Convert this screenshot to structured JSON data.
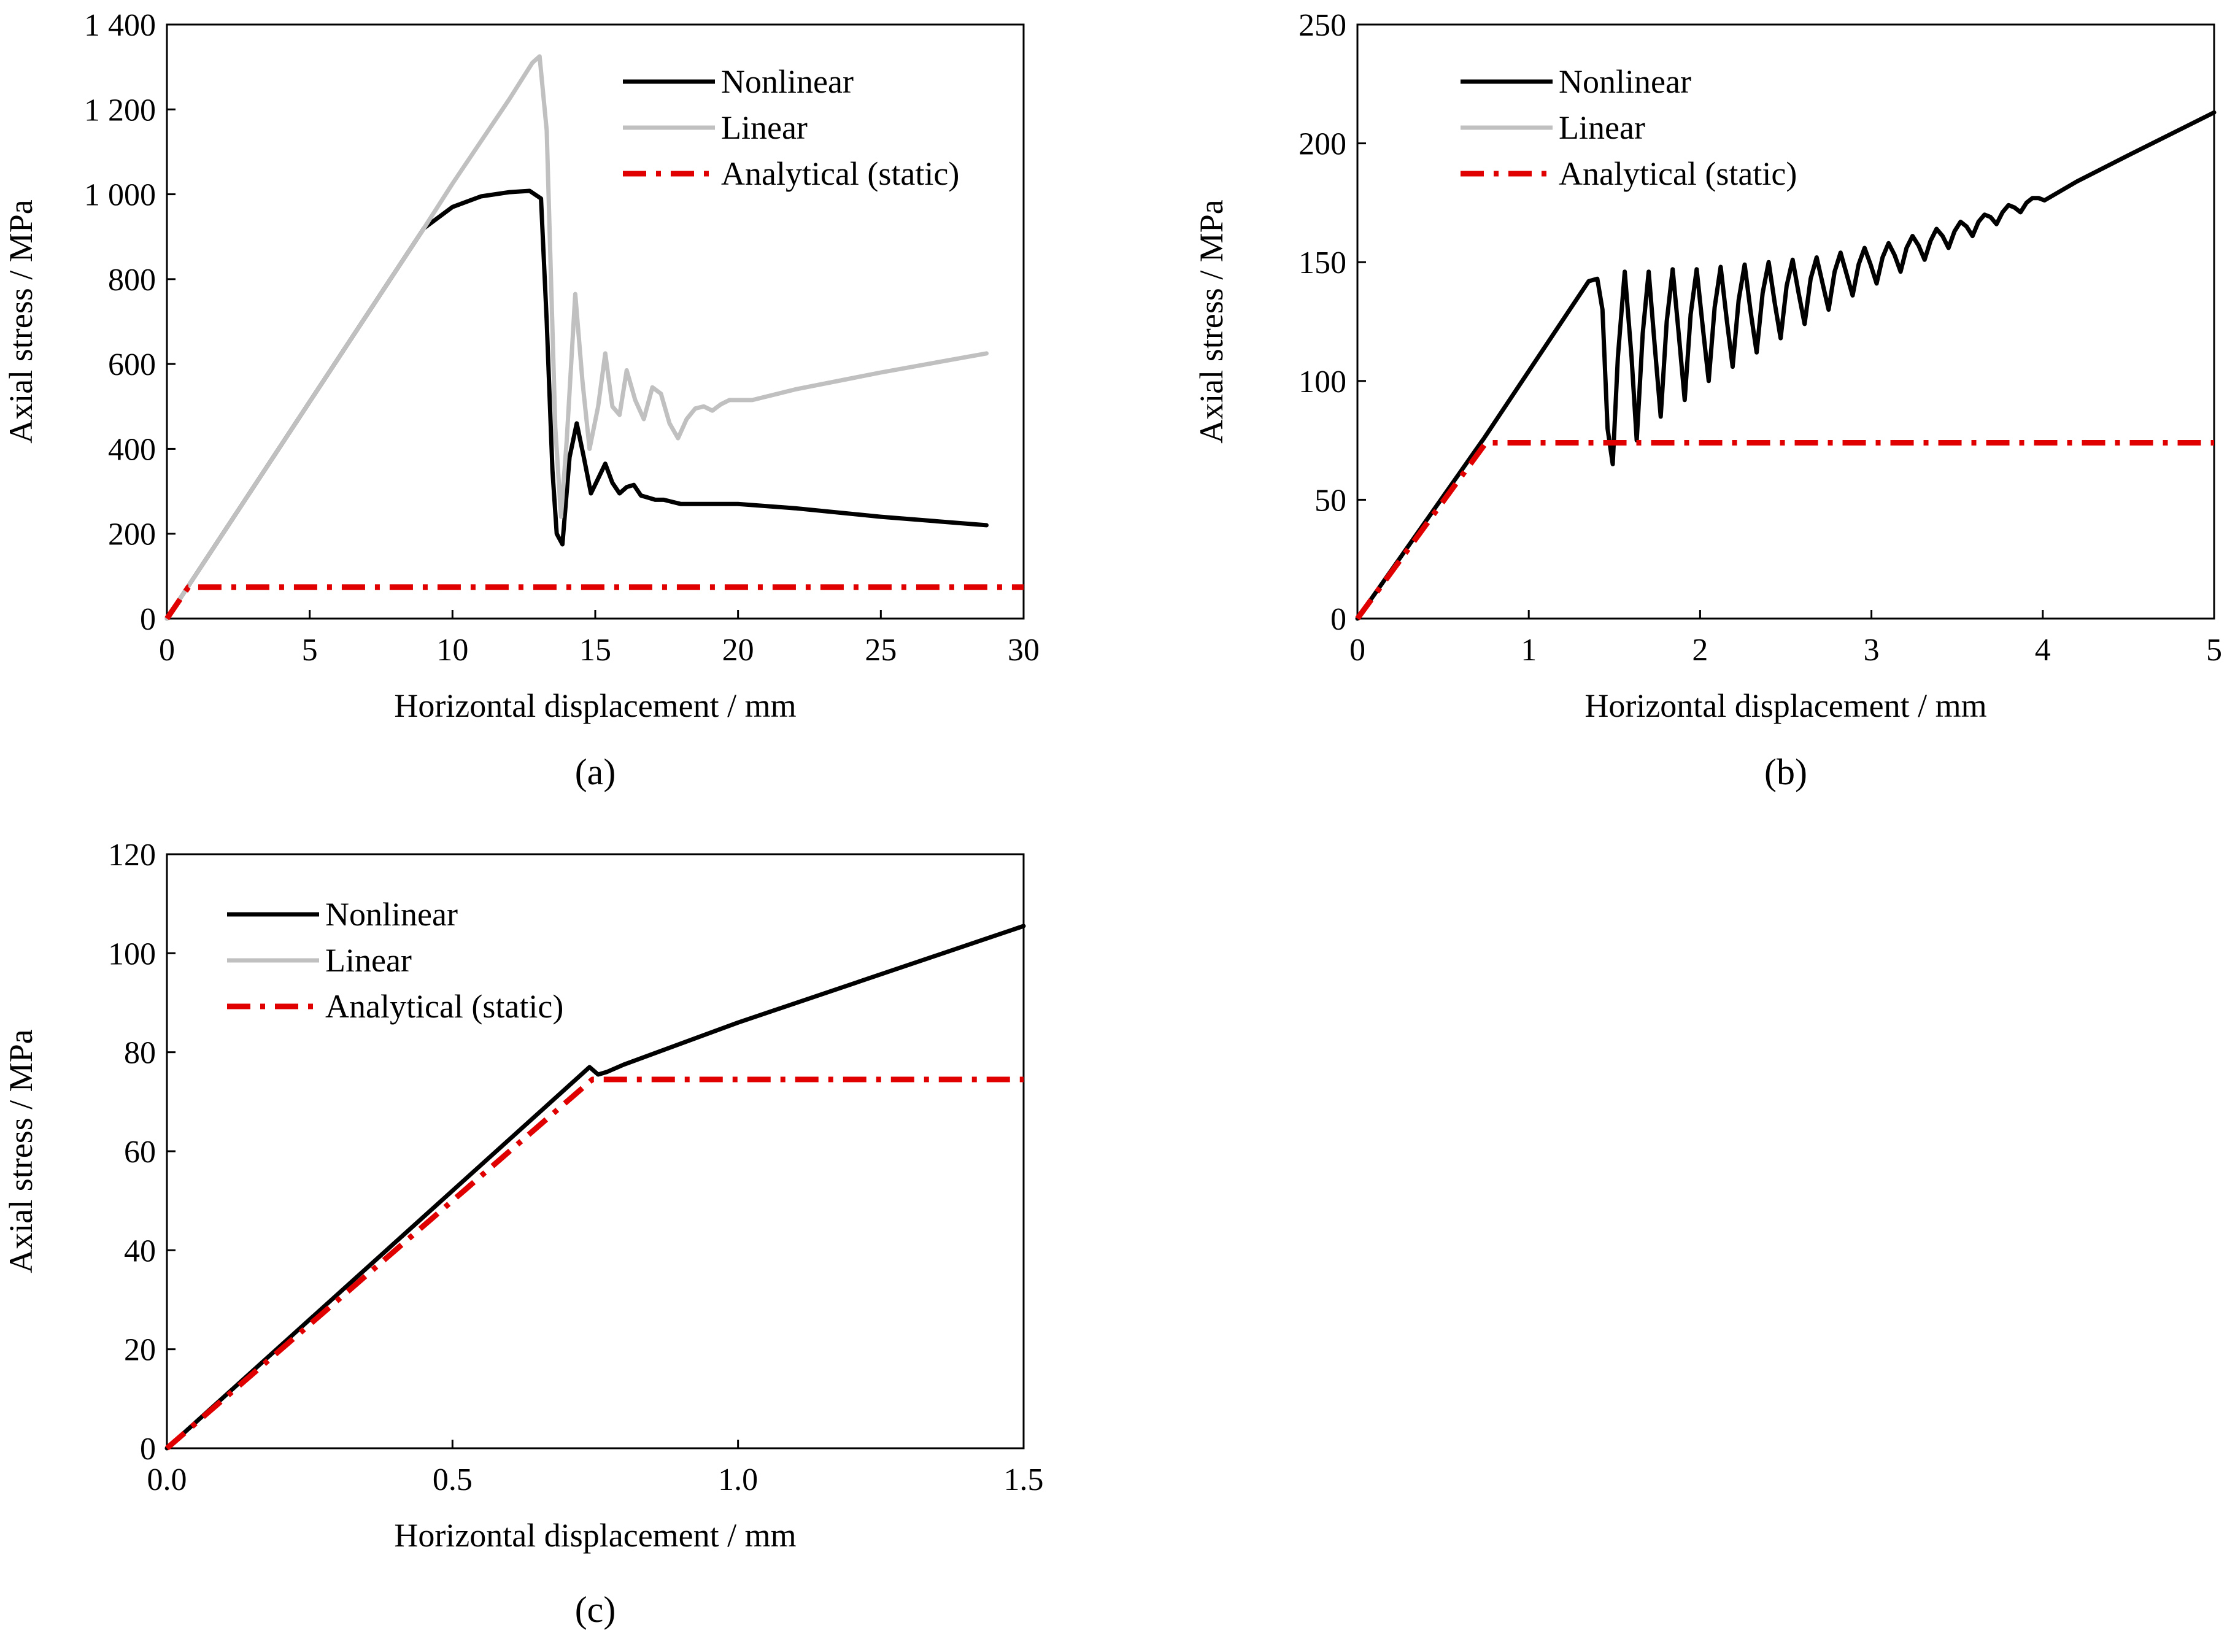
{
  "colors": {
    "nonlinear": "#000000",
    "linear": "#c0c0c0",
    "analytical": "#e00000",
    "axis": "#000000"
  },
  "legend": [
    "Nonlinear",
    "Linear",
    "Analytical (static)"
  ],
  "chart_data": [
    {
      "id": "a",
      "type": "line",
      "panel_label": "(a)",
      "xlabel": "Horizontal displacement / mm",
      "ylabel": "Axial stress / MPa",
      "xlim": [
        0,
        30
      ],
      "ylim": [
        0,
        1400
      ],
      "xticks": [
        0,
        5,
        10,
        15,
        20,
        25,
        30
      ],
      "xtick_labels": [
        "0",
        "5",
        "10",
        "15",
        "20",
        "25",
        "30"
      ],
      "yticks": [
        0,
        200,
        400,
        600,
        800,
        1000,
        1200,
        1400
      ],
      "ytick_labels": [
        "0",
        "200",
        "400",
        "600",
        "800",
        "1 000",
        "1 200",
        "1 400"
      ],
      "series": [
        {
          "name": "Nonlinear",
          "color_key": "nonlinear",
          "x": [
            0,
            9,
            10,
            11,
            12,
            12.7,
            13.1,
            13.3,
            13.5,
            13.65,
            13.85,
            14.1,
            14.35,
            14.6,
            14.85,
            15.1,
            15.35,
            15.6,
            15.85,
            16.1,
            16.35,
            16.6,
            16.85,
            17.1,
            17.4,
            17.7,
            18,
            19,
            20,
            22,
            25,
            28.7
          ],
          "y": [
            0,
            920,
            970,
            995,
            1005,
            1008,
            990,
            700,
            350,
            200,
            175,
            380,
            460,
            380,
            295,
            330,
            365,
            320,
            295,
            310,
            315,
            290,
            285,
            280,
            280,
            275,
            270,
            270,
            270,
            260,
            240,
            220
          ]
        },
        {
          "name": "Linear",
          "color_key": "linear",
          "x": [
            0,
            9,
            10,
            11,
            12,
            12.8,
            13.05,
            13.3,
            13.6,
            13.8,
            14.0,
            14.3,
            14.55,
            14.8,
            15.1,
            15.35,
            15.6,
            15.85,
            16.1,
            16.4,
            16.7,
            17.0,
            17.3,
            17.6,
            17.9,
            18.2,
            18.5,
            18.8,
            19.1,
            19.4,
            19.7,
            20.5,
            22,
            25,
            28.7
          ],
          "y": [
            0,
            920,
            1025,
            1125,
            1225,
            1310,
            1325,
            1150,
            450,
            240,
            420,
            765,
            560,
            400,
            500,
            625,
            500,
            480,
            585,
            515,
            470,
            545,
            530,
            460,
            425,
            470,
            495,
            500,
            490,
            505,
            515,
            515,
            540,
            580,
            625
          ]
        },
        {
          "name": "Analytical (static)",
          "color_key": "analytical",
          "dashed": true,
          "x": [
            0,
            0.75,
            30
          ],
          "y": [
            0,
            74,
            74
          ]
        }
      ]
    },
    {
      "id": "b",
      "type": "line",
      "panel_label": "(b)",
      "xlabel": "Horizontal displacement / mm",
      "ylabel": "Axial stress / MPa",
      "xlim": [
        0,
        5
      ],
      "ylim": [
        0,
        250
      ],
      "xticks": [
        0,
        1,
        2,
        3,
        4,
        5
      ],
      "xtick_labels": [
        "0",
        "1",
        "2",
        "3",
        "4",
        "5"
      ],
      "yticks": [
        0,
        50,
        100,
        150,
        200,
        250
      ],
      "ytick_labels": [
        "0",
        "50",
        "100",
        "150",
        "200",
        "250"
      ],
      "series": [
        {
          "name": "Nonlinear",
          "color_key": "nonlinear",
          "x": [
            0,
            0.74,
            1.35,
            1.4,
            1.43,
            1.46,
            1.49,
            1.52,
            1.56,
            1.6,
            1.63,
            1.665,
            1.7,
            1.735,
            1.77,
            1.805,
            1.84,
            1.875,
            1.91,
            1.945,
            1.98,
            2.015,
            2.05,
            2.085,
            2.12,
            2.155,
            2.19,
            2.225,
            2.26,
            2.295,
            2.33,
            2.365,
            2.4,
            2.435,
            2.47,
            2.505,
            2.54,
            2.575,
            2.61,
            2.645,
            2.68,
            2.715,
            2.75,
            2.785,
            2.82,
            2.855,
            2.89,
            2.925,
            2.96,
            2.995,
            3.03,
            3.065,
            3.1,
            3.135,
            3.17,
            3.205,
            3.24,
            3.275,
            3.31,
            3.345,
            3.38,
            3.415,
            3.45,
            3.485,
            3.52,
            3.555,
            3.59,
            3.625,
            3.66,
            3.695,
            3.73,
            3.765,
            3.8,
            3.835,
            3.87,
            3.905,
            3.94,
            3.975,
            4.01,
            4.2,
            4.5,
            4.75,
            5.0
          ],
          "y": [
            0,
            76,
            142,
            143,
            130,
            80,
            65,
            110,
            146,
            110,
            75,
            120,
            146,
            115,
            85,
            125,
            147,
            120,
            92,
            128,
            147,
            123,
            100,
            131,
            148,
            126,
            106,
            134,
            149,
            129,
            112,
            137,
            150,
            133,
            118,
            140,
            151,
            137,
            124,
            143,
            152,
            141,
            130,
            146,
            154,
            145,
            136,
            149,
            156,
            149,
            141,
            152,
            158,
            153,
            146,
            156,
            161,
            157,
            151,
            159,
            164,
            161,
            156,
            163,
            167,
            165,
            161,
            167,
            170,
            169,
            166,
            171,
            174,
            173,
            171,
            175,
            177,
            177,
            176,
            184,
            195,
            204,
            213
          ]
        },
        {
          "name": "Analytical (static)",
          "color_key": "analytical",
          "dashed": true,
          "x": [
            0,
            0.75,
            5
          ],
          "y": [
            0,
            74,
            74
          ]
        }
      ]
    },
    {
      "id": "c",
      "type": "line",
      "panel_label": "(c)",
      "xlabel": "Horizontal displacement / mm",
      "ylabel": "Axial stress / MPa",
      "xlim": [
        0,
        1.5
      ],
      "ylim": [
        0,
        120
      ],
      "xticks": [
        0,
        0.5,
        1,
        1.5
      ],
      "xtick_labels": [
        "0.0",
        "0.5",
        "1.0",
        "1.5"
      ],
      "yticks": [
        0,
        20,
        40,
        60,
        80,
        100,
        120
      ],
      "ytick_labels": [
        "0",
        "20",
        "40",
        "60",
        "80",
        "100",
        "120"
      ],
      "series": [
        {
          "name": "Nonlinear",
          "color_key": "nonlinear",
          "x": [
            0,
            0.74,
            0.755,
            0.77,
            0.8,
            1.0,
            1.5
          ],
          "y": [
            0,
            77,
            75.5,
            76,
            77.5,
            86,
            105.5
          ]
        },
        {
          "name": "Analytical (static)",
          "color_key": "analytical",
          "dashed": true,
          "x": [
            0,
            0.745,
            1.5
          ],
          "y": [
            0,
            74.5,
            74.5
          ]
        }
      ]
    }
  ]
}
